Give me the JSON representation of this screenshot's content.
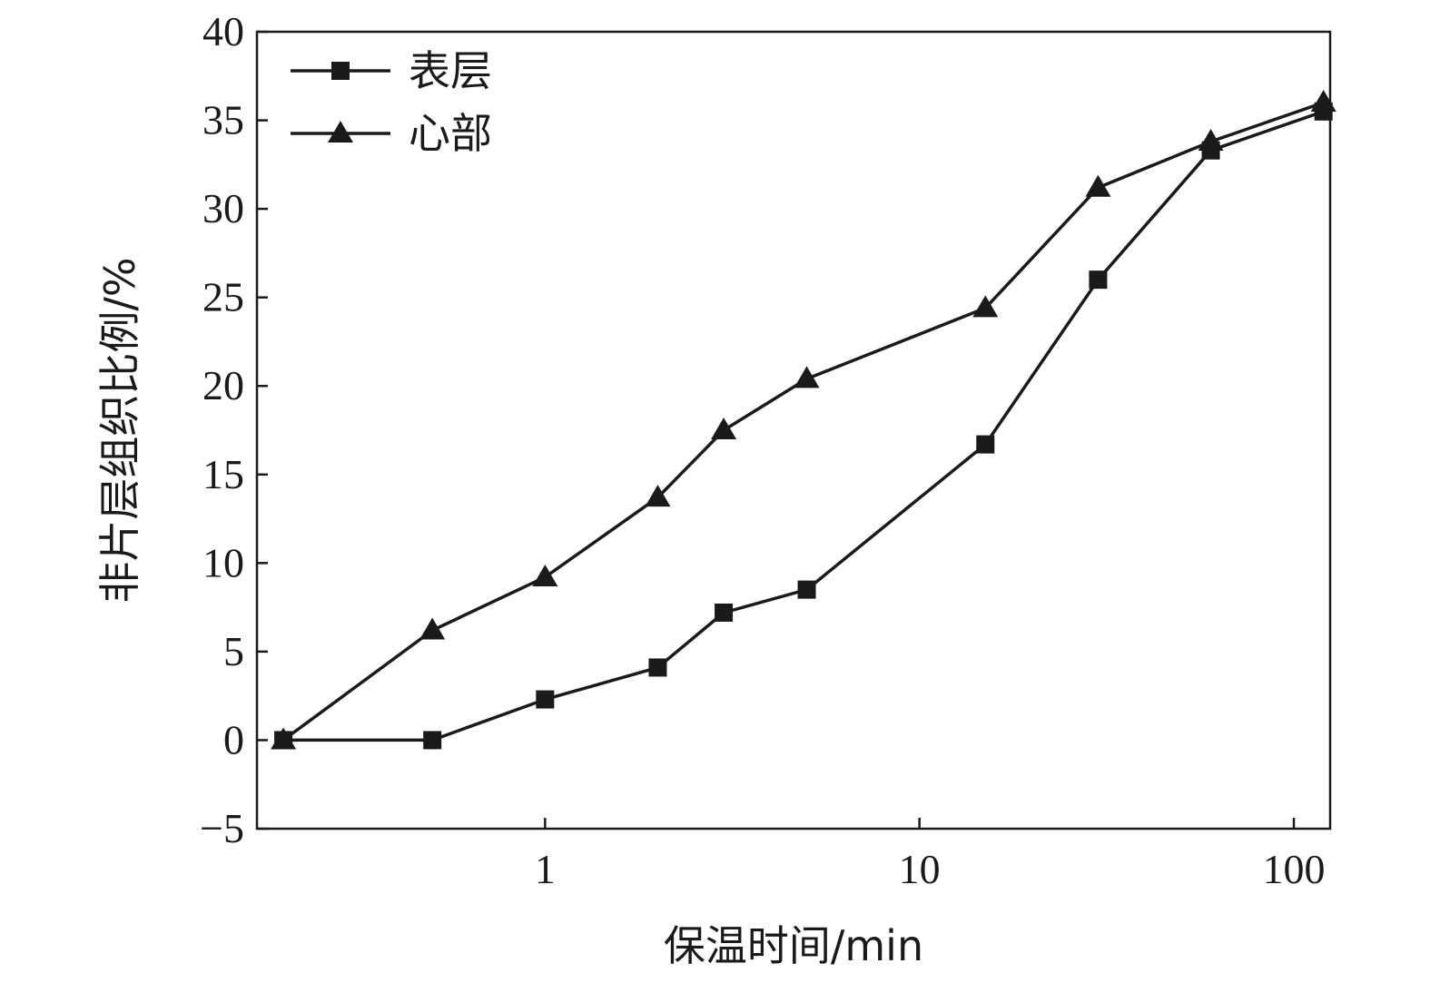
{
  "chart_data": {
    "type": "line",
    "xlabel": "保温时间/min",
    "ylabel": "非片层组织比例/%",
    "x_scale": "log",
    "xlim": [
      0.17,
      125
    ],
    "ylim": [
      -5,
      40
    ],
    "x_ticks": [
      1,
      10,
      100
    ],
    "x_tick_labels": [
      "1",
      "10",
      "100"
    ],
    "y_ticks": [
      -5,
      0,
      5,
      10,
      15,
      20,
      25,
      30,
      35,
      40
    ],
    "y_tick_labels": [
      "−5",
      "0",
      "5",
      "10",
      "15",
      "20",
      "25",
      "30",
      "35",
      "40"
    ],
    "grid": false,
    "legend_position": "top-left",
    "series": [
      {
        "name": "表层",
        "marker": "square",
        "color": "#1a1a1a",
        "points": [
          {
            "x": 0.2,
            "y": 0
          },
          {
            "x": 0.5,
            "y": 0
          },
          {
            "x": 1,
            "y": 2.3
          },
          {
            "x": 2,
            "y": 4.1
          },
          {
            "x": 3,
            "y": 7.2
          },
          {
            "x": 5,
            "y": 8.5
          },
          {
            "x": 15,
            "y": 16.7
          },
          {
            "x": 30,
            "y": 26
          },
          {
            "x": 60,
            "y": 33.3
          },
          {
            "x": 120,
            "y": 35.5
          }
        ]
      },
      {
        "name": "心部",
        "marker": "triangle",
        "color": "#1a1a1a",
        "points": [
          {
            "x": 0.2,
            "y": 0
          },
          {
            "x": 0.5,
            "y": 6.2
          },
          {
            "x": 1,
            "y": 9.2
          },
          {
            "x": 2,
            "y": 13.7
          },
          {
            "x": 3,
            "y": 17.5
          },
          {
            "x": 5,
            "y": 20.4
          },
          {
            "x": 15,
            "y": 24.4
          },
          {
            "x": 30,
            "y": 31.2
          },
          {
            "x": 60,
            "y": 33.8
          },
          {
            "x": 120,
            "y": 36
          }
        ]
      }
    ]
  }
}
